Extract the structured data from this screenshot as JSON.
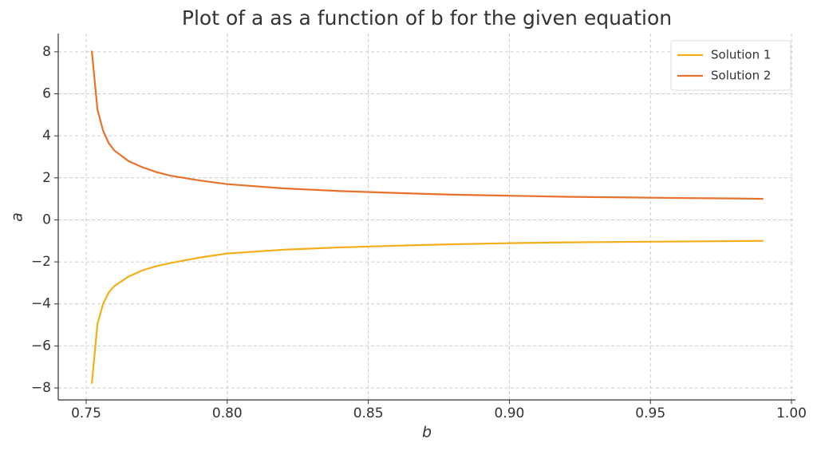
{
  "chart_data": {
    "type": "line",
    "title": "Plot of a as a function of b for the given equation",
    "x_label": "b",
    "y_label": "a",
    "x": [
      0.752,
      0.754,
      0.756,
      0.758,
      0.76,
      0.765,
      0.77,
      0.775,
      0.78,
      0.79,
      0.8,
      0.82,
      0.84,
      0.86,
      0.88,
      0.9,
      0.92,
      0.94,
      0.96,
      0.98,
      0.99
    ],
    "series": [
      {
        "name": "Solution 1",
        "color": "#f5ae1b",
        "values": [
          -7.8,
          -4.95,
          -4.0,
          -3.45,
          -3.15,
          -2.7,
          -2.4,
          -2.2,
          -2.05,
          -1.8,
          -1.6,
          -1.42,
          -1.31,
          -1.23,
          -1.16,
          -1.11,
          -1.07,
          -1.05,
          -1.03,
          -1.01,
          -1.0
        ]
      },
      {
        "name": "Solution 2",
        "color": "#e8722c",
        "values": [
          8.05,
          5.25,
          4.25,
          3.65,
          3.3,
          2.8,
          2.5,
          2.27,
          2.1,
          1.88,
          1.7,
          1.5,
          1.37,
          1.28,
          1.2,
          1.15,
          1.1,
          1.07,
          1.04,
          1.02,
          1.0
        ]
      }
    ],
    "xlim": [
      0.7401,
      1.0014
    ],
    "ylim": [
      -8.57,
      8.87
    ],
    "xticks": [
      0.75,
      {
        "value": 0.8,
        "label": "0.80"
      },
      0.85,
      {
        "value": 0.9,
        "label": "0.90"
      },
      0.95,
      {
        "value": 1.0,
        "label": "1.00"
      }
    ],
    "yticks": [
      {
        "value": -8,
        "label": "−8"
      },
      {
        "value": -6,
        "label": "−6"
      },
      {
        "value": -4,
        "label": "−4"
      },
      {
        "value": -2,
        "label": "−2"
      },
      0,
      2,
      4,
      6,
      8
    ],
    "grid": true,
    "legend": "upper right"
  }
}
